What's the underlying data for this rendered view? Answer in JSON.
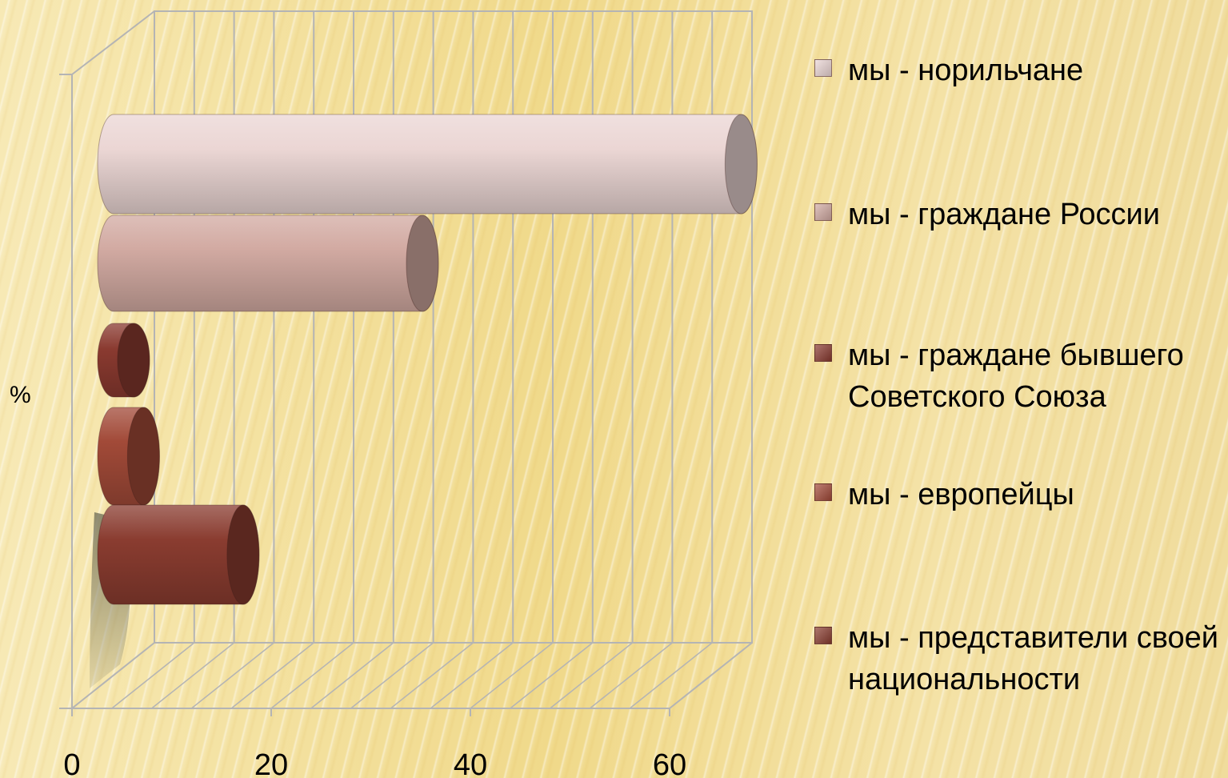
{
  "chart_data": {
    "type": "bar",
    "orientation": "horizontal",
    "style": "3d-cylinder",
    "ylabel": "%",
    "xlim": [
      0,
      60
    ],
    "xticks": [
      "0",
      "20",
      "40",
      "60"
    ],
    "grid": true,
    "legend_position": "right",
    "series": [
      {
        "name": "мы - норильчане",
        "value": 63,
        "color": "#ebd6d4"
      },
      {
        "name": "мы - граждане России",
        "value": 31,
        "color": "#d2aaa2"
      },
      {
        "name": "мы - граждане бывшего Советского Союза",
        "value": 2,
        "color": "#8a3a30"
      },
      {
        "name": "мы -  европейцы",
        "value": 3,
        "color": "#a24a38"
      },
      {
        "name": "мы - представители своей национальности",
        "value": 13,
        "color": "#8a3c30"
      }
    ]
  }
}
